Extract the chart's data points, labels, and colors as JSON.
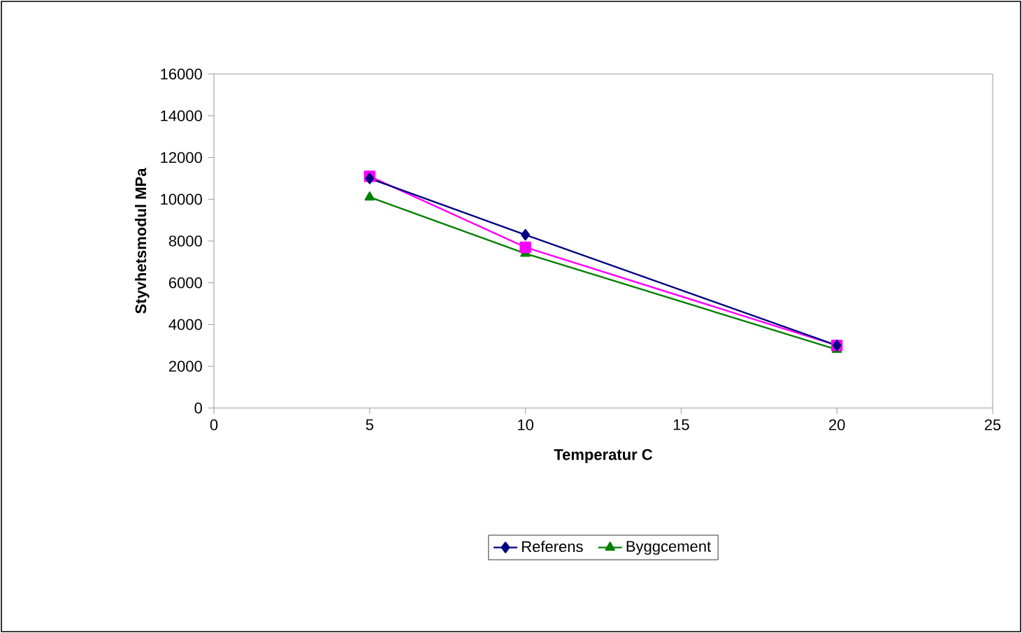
{
  "chart_data": {
    "type": "line",
    "xlabel": "Temperatur C",
    "ylabel": "Styvhetsmodul MPa",
    "x": [
      5,
      10,
      20
    ],
    "xlim": [
      0,
      25
    ],
    "xticks": [
      0,
      5,
      10,
      15,
      20,
      25
    ],
    "ylim": [
      0,
      16000
    ],
    "yticks": [
      0,
      2000,
      4000,
      6000,
      8000,
      10000,
      12000,
      14000,
      16000
    ],
    "grid": false,
    "legend": "bottom",
    "line_style": "solid",
    "series": [
      {
        "name": "Referens",
        "color": "#000080",
        "marker": "diamond",
        "values": [
          11000,
          8300,
          3000
        ]
      },
      {
        "color": "#ff00ff",
        "marker": "square",
        "values": [
          11100,
          7700,
          3000
        ]
      },
      {
        "name": "Byggcement",
        "color": "#008000",
        "marker": "triangle",
        "values": [
          10100,
          7400,
          2800
        ]
      }
    ]
  }
}
